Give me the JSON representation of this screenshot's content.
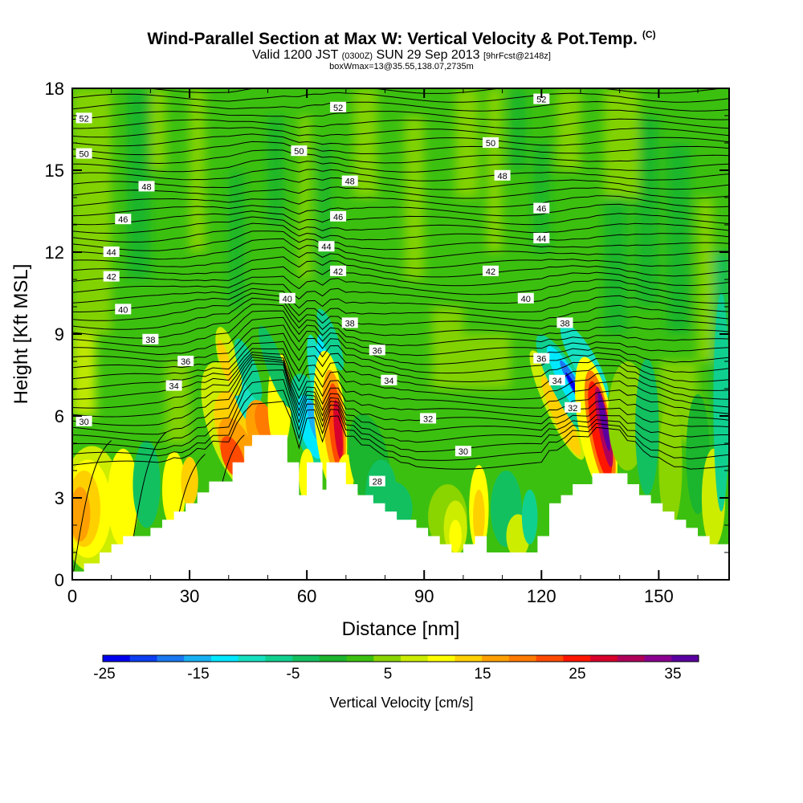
{
  "title": {
    "main": "Wind-Parallel Section at Max W: Vertical Velocity & Pot.Temp.",
    "copyright": "(C)",
    "line2_a": "Valid 1200 JST",
    "line2_b": "(0300Z)",
    "line2_c": "SUN 29 Sep 2013",
    "line2_d": "[9hrFcst@2148z]",
    "line3": "boxWmax=13@35.55,138.07,2735m"
  },
  "colors": {
    "neg25": "#0000ee",
    "neg22": "#0b3ef0",
    "neg19": "#1a78f0",
    "neg16": "#18b0f2",
    "neg13": "#00e8ff",
    "neg10": "#16e0c0",
    "neg7": "#10d090",
    "neg4": "#12c060",
    "neg1": "#1bb52e",
    "pos1": "#3cc010",
    "pos4": "#8ad400",
    "pos7": "#ccec00",
    "pos10": "#ffff00",
    "pos13": "#ffd000",
    "pos16": "#ffa000",
    "pos19": "#ff7a00",
    "pos22": "#ff4a00",
    "pos25": "#ff1600",
    "pos28": "#d8002c",
    "pos31": "#b0005a",
    "pos34": "#8a0090",
    "pos37": "#5a00a0"
  },
  "chart_data": {
    "type": "heatmap",
    "xlabel": "Distance [nm]",
    "ylabel": "Height [Kft MSL]",
    "xlim": [
      0,
      168
    ],
    "ylim": [
      0,
      18
    ],
    "x_ticks": [
      0,
      30,
      60,
      90,
      120,
      150
    ],
    "y_ticks": [
      0,
      3,
      6,
      9,
      12,
      15,
      18
    ],
    "colorbar": {
      "label": "Vertical Velocity [cm/s]",
      "tick_labels": [
        "-25",
        "-15",
        "-5",
        "5",
        "15",
        "25",
        "35"
      ],
      "bins": [
        "neg25",
        "neg22",
        "neg19",
        "neg16",
        "neg13",
        "neg10",
        "neg7",
        "neg4",
        "neg1",
        "pos1",
        "pos4",
        "pos7",
        "pos10",
        "pos13",
        "pos16",
        "pos19",
        "pos22",
        "pos25",
        "pos28",
        "pos31",
        "pos34",
        "pos37"
      ]
    },
    "terrain_profile": [
      [
        0,
        0.3
      ],
      [
        3,
        0.3
      ],
      [
        3,
        0.6
      ],
      [
        7,
        0.6
      ],
      [
        7,
        1.0
      ],
      [
        10,
        1.0
      ],
      [
        10,
        1.3
      ],
      [
        13,
        1.3
      ],
      [
        13,
        1.6
      ],
      [
        20,
        1.6
      ],
      [
        20,
        1.9
      ],
      [
        23,
        1.9
      ],
      [
        23,
        2.2
      ],
      [
        26,
        2.2
      ],
      [
        26,
        2.5
      ],
      [
        29,
        2.5
      ],
      [
        29,
        2.8
      ],
      [
        32,
        2.8
      ],
      [
        32,
        3.2
      ],
      [
        35,
        3.2
      ],
      [
        35,
        3.6
      ],
      [
        41,
        3.6
      ],
      [
        41,
        4.3
      ],
      [
        44,
        4.3
      ],
      [
        44,
        4.9
      ],
      [
        46,
        4.9
      ],
      [
        46,
        5.3
      ],
      [
        55,
        5.3
      ],
      [
        55,
        4.3
      ],
      [
        58,
        4.3
      ],
      [
        58,
        3.1
      ],
      [
        60,
        3.1
      ],
      [
        60,
        4.3
      ],
      [
        64,
        4.3
      ],
      [
        64,
        3.3
      ],
      [
        65,
        3.3
      ],
      [
        65,
        4.3
      ],
      [
        70,
        4.3
      ],
      [
        70,
        3.5
      ],
      [
        73,
        3.5
      ],
      [
        73,
        3.1
      ],
      [
        77,
        3.1
      ],
      [
        77,
        2.8
      ],
      [
        80,
        2.8
      ],
      [
        80,
        2.5
      ],
      [
        83,
        2.5
      ],
      [
        83,
        2.2
      ],
      [
        88,
        2.2
      ],
      [
        88,
        1.9
      ],
      [
        91,
        1.9
      ],
      [
        91,
        1.6
      ],
      [
        94,
        1.6
      ],
      [
        94,
        1.3
      ],
      [
        97,
        1.3
      ],
      [
        97,
        1.0
      ],
      [
        100,
        1.0
      ],
      [
        100,
        1.3
      ],
      [
        103,
        1.3
      ],
      [
        103,
        1.6
      ],
      [
        106,
        1.6
      ],
      [
        106,
        1.0
      ],
      [
        119,
        1.0
      ],
      [
        119,
        1.6
      ],
      [
        122,
        1.6
      ],
      [
        122,
        2.8
      ],
      [
        125,
        2.8
      ],
      [
        125,
        3.1
      ],
      [
        128,
        3.1
      ],
      [
        128,
        3.5
      ],
      [
        133,
        3.5
      ],
      [
        133,
        3.9
      ],
      [
        142,
        3.9
      ],
      [
        142,
        3.5
      ],
      [
        145,
        3.5
      ],
      [
        145,
        3.1
      ],
      [
        148,
        3.1
      ],
      [
        148,
        2.8
      ],
      [
        151,
        2.8
      ],
      [
        151,
        2.5
      ],
      [
        154,
        2.5
      ],
      [
        154,
        2.2
      ],
      [
        157,
        2.2
      ],
      [
        157,
        1.9
      ],
      [
        160,
        1.9
      ],
      [
        160,
        1.6
      ],
      [
        163,
        1.6
      ],
      [
        163,
        1.3
      ],
      [
        168,
        1.3
      ]
    ],
    "contour_labels": [
      {
        "text": "52",
        "x": 3,
        "y": 16.9
      },
      {
        "text": "50",
        "x": 3,
        "y": 15.6
      },
      {
        "text": "48",
        "x": 19,
        "y": 14.4
      },
      {
        "text": "46",
        "x": 13,
        "y": 13.2
      },
      {
        "text": "44",
        "x": 10,
        "y": 12.0
      },
      {
        "text": "42",
        "x": 10,
        "y": 11.1
      },
      {
        "text": "40",
        "x": 13,
        "y": 9.9
      },
      {
        "text": "38",
        "x": 20,
        "y": 8.8
      },
      {
        "text": "36",
        "x": 29,
        "y": 8.0
      },
      {
        "text": "34",
        "x": 26,
        "y": 7.1
      },
      {
        "text": "30",
        "x": 3,
        "y": 5.8
      },
      {
        "text": "52",
        "x": 68,
        "y": 17.3
      },
      {
        "text": "50",
        "x": 58,
        "y": 15.7
      },
      {
        "text": "48",
        "x": 71,
        "y": 14.6
      },
      {
        "text": "46",
        "x": 68,
        "y": 13.3
      },
      {
        "text": "44",
        "x": 65,
        "y": 12.2
      },
      {
        "text": "42",
        "x": 68,
        "y": 11.3
      },
      {
        "text": "40",
        "x": 55,
        "y": 10.3
      },
      {
        "text": "38",
        "x": 71,
        "y": 9.4
      },
      {
        "text": "36",
        "x": 78,
        "y": 8.4
      },
      {
        "text": "34",
        "x": 81,
        "y": 7.3
      },
      {
        "text": "32",
        "x": 91,
        "y": 5.9
      },
      {
        "text": "30",
        "x": 100,
        "y": 4.7
      },
      {
        "text": "28",
        "x": 78,
        "y": 3.6
      },
      {
        "text": "52",
        "x": 120,
        "y": 17.6
      },
      {
        "text": "50",
        "x": 107,
        "y": 16.0
      },
      {
        "text": "48",
        "x": 110,
        "y": 14.8
      },
      {
        "text": "46",
        "x": 120,
        "y": 13.6
      },
      {
        "text": "44",
        "x": 120,
        "y": 12.5
      },
      {
        "text": "42",
        "x": 107,
        "y": 11.3
      },
      {
        "text": "40",
        "x": 116,
        "y": 10.3
      },
      {
        "text": "38",
        "x": 126,
        "y": 9.4
      },
      {
        "text": "36",
        "x": 120,
        "y": 8.1
      },
      {
        "text": "34",
        "x": 124,
        "y": 7.3
      },
      {
        "text": "32",
        "x": 128,
        "y": 6.3
      }
    ],
    "grid": false
  }
}
